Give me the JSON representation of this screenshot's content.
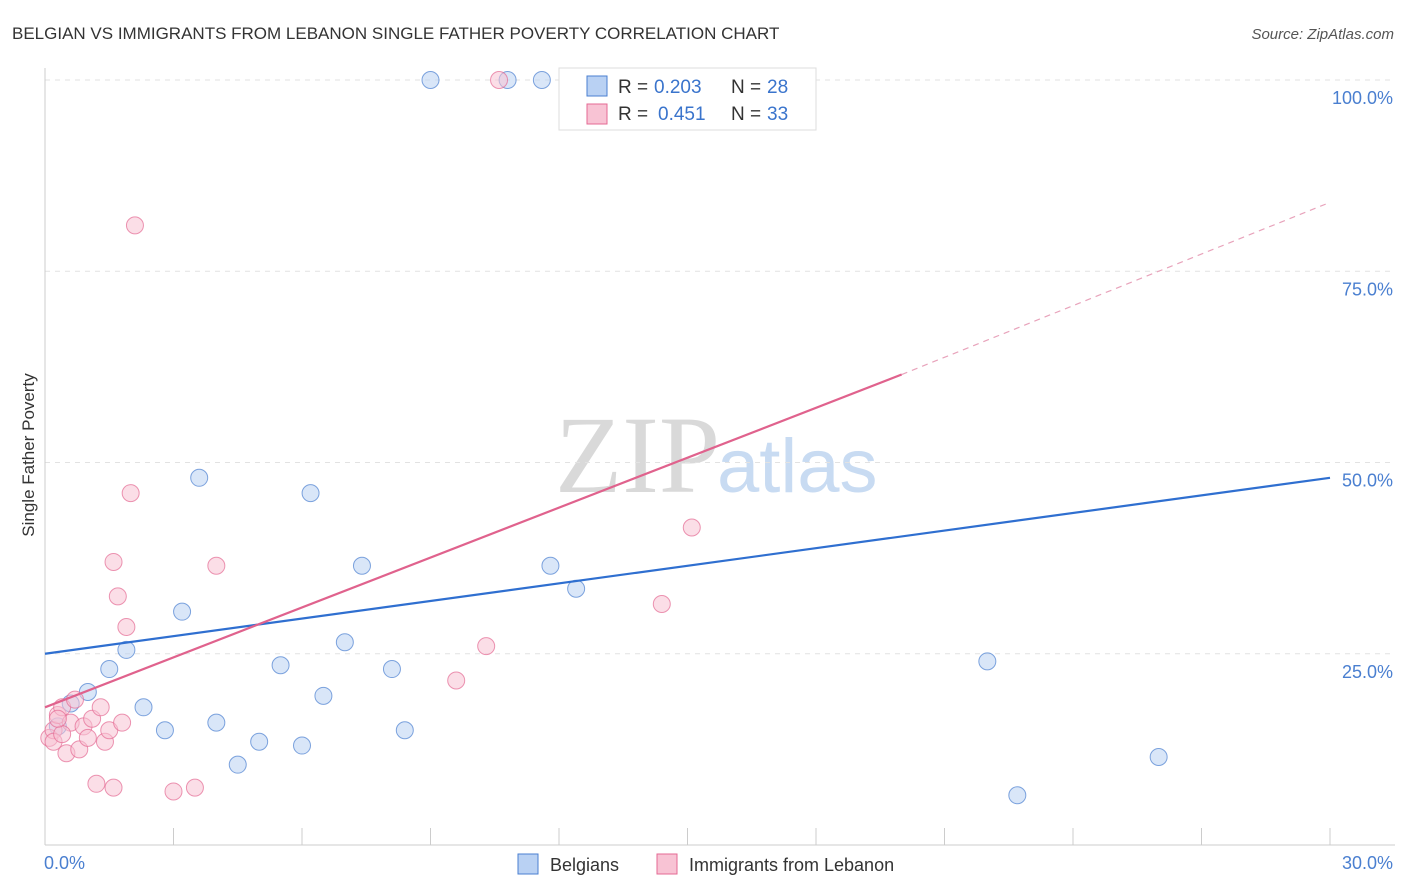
{
  "chart_data": {
    "type": "scatter",
    "title": "BELGIAN VS IMMIGRANTS FROM LEBANON SINGLE FATHER POVERTY CORRELATION CHART",
    "source": "Source: ZipAtlas.com",
    "xlabel": "",
    "ylabel": "Single Father Poverty",
    "xlim": [
      0,
      30
    ],
    "ylim": [
      0,
      100
    ],
    "x_ticks": [
      {
        "value": 0,
        "label": "0.0%"
      },
      {
        "value": 30,
        "label": "30.0%"
      }
    ],
    "y_ticks": [
      {
        "value": 25,
        "label": "25.0%"
      },
      {
        "value": 50,
        "label": "50.0%"
      },
      {
        "value": 75,
        "label": "75.0%"
      },
      {
        "value": 100,
        "label": "100.0%"
      }
    ],
    "grid": true,
    "watermark": {
      "zip": "ZIP",
      "atlas": "atlas"
    },
    "legend": {
      "r_label": "R =",
      "n_label": "N =",
      "entries": [
        {
          "name": "Belgians",
          "r": "0.203",
          "n": "28"
        },
        {
          "name": "Immigrants from Lebanon",
          "r": "0.451",
          "n": "33"
        }
      ]
    },
    "series": [
      {
        "name": "Belgians",
        "color": "#4a7fd0",
        "fill": "#b9d1f3",
        "trend": {
          "x0": 0,
          "y0": 25.0,
          "x1": 30,
          "y1": 48.0,
          "dashed_to": null
        },
        "points": [
          [
            0.3,
            15.5
          ],
          [
            0.6,
            18.5
          ],
          [
            1.0,
            20.0
          ],
          [
            1.5,
            23.0
          ],
          [
            1.9,
            25.5
          ],
          [
            2.3,
            18.0
          ],
          [
            2.8,
            15.0
          ],
          [
            3.2,
            30.5
          ],
          [
            3.6,
            48.0
          ],
          [
            4.0,
            16.0
          ],
          [
            4.5,
            10.5
          ],
          [
            5.0,
            13.5
          ],
          [
            5.5,
            23.5
          ],
          [
            6.0,
            13.0
          ],
          [
            6.2,
            46.0
          ],
          [
            6.5,
            19.5
          ],
          [
            7.0,
            26.5
          ],
          [
            7.4,
            36.5
          ],
          [
            8.1,
            23.0
          ],
          [
            8.4,
            15.0
          ],
          [
            9.0,
            100.0
          ],
          [
            10.8,
            100.0
          ],
          [
            11.6,
            100.0
          ],
          [
            11.8,
            36.5
          ],
          [
            12.4,
            33.5
          ],
          [
            22.0,
            24.0
          ],
          [
            22.7,
            6.5
          ],
          [
            26.0,
            11.5
          ]
        ]
      },
      {
        "name": "Immigrants from Lebanon",
        "color": "#e46a93",
        "fill": "#f8c3d4",
        "trend": {
          "x0": 0,
          "y0": 18.0,
          "x1": 20,
          "y1": 61.5,
          "x2": 30,
          "y2": 84.0
        },
        "points": [
          [
            0.1,
            14.0
          ],
          [
            0.2,
            15.0
          ],
          [
            0.3,
            17.0
          ],
          [
            0.4,
            18.0
          ],
          [
            0.5,
            12.0
          ],
          [
            0.6,
            16.0
          ],
          [
            0.7,
            19.0
          ],
          [
            0.8,
            12.5
          ],
          [
            0.9,
            15.5
          ],
          [
            1.0,
            14.0
          ],
          [
            1.1,
            16.5
          ],
          [
            1.2,
            8.0
          ],
          [
            1.3,
            18.0
          ],
          [
            1.4,
            13.5
          ],
          [
            1.5,
            15.0
          ],
          [
            1.6,
            7.5
          ],
          [
            1.6,
            37.0
          ],
          [
            1.7,
            32.5
          ],
          [
            1.8,
            16.0
          ],
          [
            1.9,
            28.5
          ],
          [
            2.0,
            46.0
          ],
          [
            2.1,
            81.0
          ],
          [
            3.0,
            7.0
          ],
          [
            3.5,
            7.5
          ],
          [
            4.0,
            36.5
          ],
          [
            0.2,
            13.5
          ],
          [
            0.4,
            14.5
          ],
          [
            9.6,
            21.5
          ],
          [
            10.3,
            26.0
          ],
          [
            10.6,
            100.0
          ],
          [
            14.4,
            31.5
          ],
          [
            15.1,
            41.5
          ],
          [
            0.3,
            16.5
          ]
        ]
      }
    ]
  }
}
